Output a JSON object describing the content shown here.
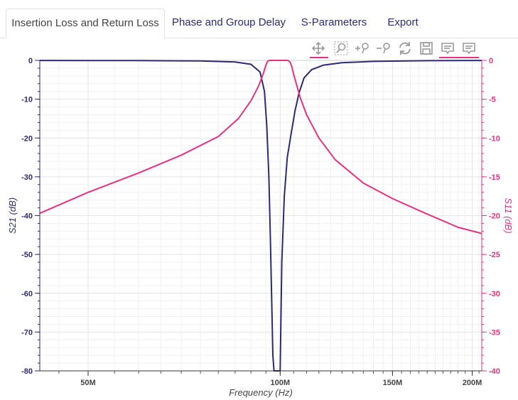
{
  "tabs": [
    {
      "label": "Insertion Loss and Return Loss",
      "active": true
    },
    {
      "label": "Phase and Group Delay",
      "active": false
    },
    {
      "label": "S-Parameters",
      "active": false
    },
    {
      "label": "Export",
      "active": false
    }
  ],
  "toolbar": {
    "icons": [
      "pan-icon",
      "box-zoom-icon",
      "zoom-in-icon",
      "zoom-out-icon",
      "reset-icon",
      "save-icon",
      "hover-s21-icon",
      "hover-s11-icon"
    ],
    "active_color": "#e8327f"
  },
  "colors": {
    "s21": "#2c2a75",
    "s11": "#e8327f",
    "grid": "#e6e6e6"
  },
  "chart_data": {
    "type": "line",
    "xlabel": "Frequency (Hz)",
    "ylabel_left": "S21 (dB)",
    "ylabel_right": "S11 (dB)",
    "x_scale": "log",
    "xlim": [
      42000000,
      207000000
    ],
    "ylim_left": [
      -80,
      0
    ],
    "ylim_right": [
      -40,
      0
    ],
    "x_ticks": [
      {
        "value": 50000000,
        "label": "50M"
      },
      {
        "value": 100000000,
        "label": "100M"
      },
      {
        "value": 150000000,
        "label": "150M"
      },
      {
        "value": 200000000,
        "label": "200M"
      }
    ],
    "y_ticks_left": [
      "0",
      "-10",
      "-20",
      "-30",
      "-40",
      "-50",
      "-60",
      "-70",
      "-80"
    ],
    "y_ticks_right": [
      "0",
      "-5",
      "-10",
      "-15",
      "-20",
      "-25",
      "-30",
      "-35",
      "-40"
    ],
    "grid": true,
    "series": [
      {
        "name": "S21",
        "axis": "left",
        "color": "#2c2a75",
        "x": [
          42000000,
          60000000,
          75000000,
          85000000,
          90000000,
          93000000,
          94500000,
          95300000,
          96000000,
          96500000,
          97000000,
          97400000,
          97600000,
          97800000,
          98000000,
          98500000,
          99000000,
          99400000,
          99800000,
          100000000,
          100200000,
          100600000,
          101500000,
          102600000,
          104000000,
          105500000,
          107000000,
          109000000,
          112000000,
          117000000,
          125000000,
          140000000,
          170000000,
          207000000
        ],
        "y": [
          -0.02,
          -0.05,
          -0.15,
          -0.4,
          -1.0,
          -3.0,
          -8.0,
          -17.0,
          -30.0,
          -45.0,
          -62.0,
          -76.0,
          -78.0,
          -80.0,
          -80.0,
          -80.0,
          -80.0,
          -80.0,
          -80.0,
          -80.0,
          -70.0,
          -52.0,
          -35.0,
          -25.0,
          -19.0,
          -13.0,
          -8.5,
          -4.5,
          -2.4,
          -1.2,
          -0.6,
          -0.25,
          -0.08,
          -0.02
        ]
      },
      {
        "name": "S11",
        "axis": "right",
        "color": "#e8327f",
        "x": [
          42000000,
          50000000,
          60000000,
          70000000,
          80000000,
          86000000,
          90000000,
          92500000,
          94000000,
          95000000,
          95600000,
          96200000,
          97000000,
          98500000,
          100000000,
          101500000,
          102800000,
          103600000,
          104300000,
          105000000,
          106000000,
          107500000,
          110000000,
          115000000,
          122000000,
          135000000,
          150000000,
          170000000,
          190000000,
          207000000
        ],
        "y": [
          -19.7,
          -17.0,
          -14.5,
          -12.2,
          -9.8,
          -7.5,
          -5.2,
          -3.3,
          -1.8,
          -0.6,
          -0.1,
          0.0,
          0.0,
          0.0,
          0.0,
          0.0,
          0.0,
          -0.2,
          -0.8,
          -1.8,
          -3.0,
          -4.8,
          -7.0,
          -10.0,
          -12.8,
          -15.8,
          -17.8,
          -19.8,
          -21.5,
          -22.3
        ]
      }
    ]
  }
}
